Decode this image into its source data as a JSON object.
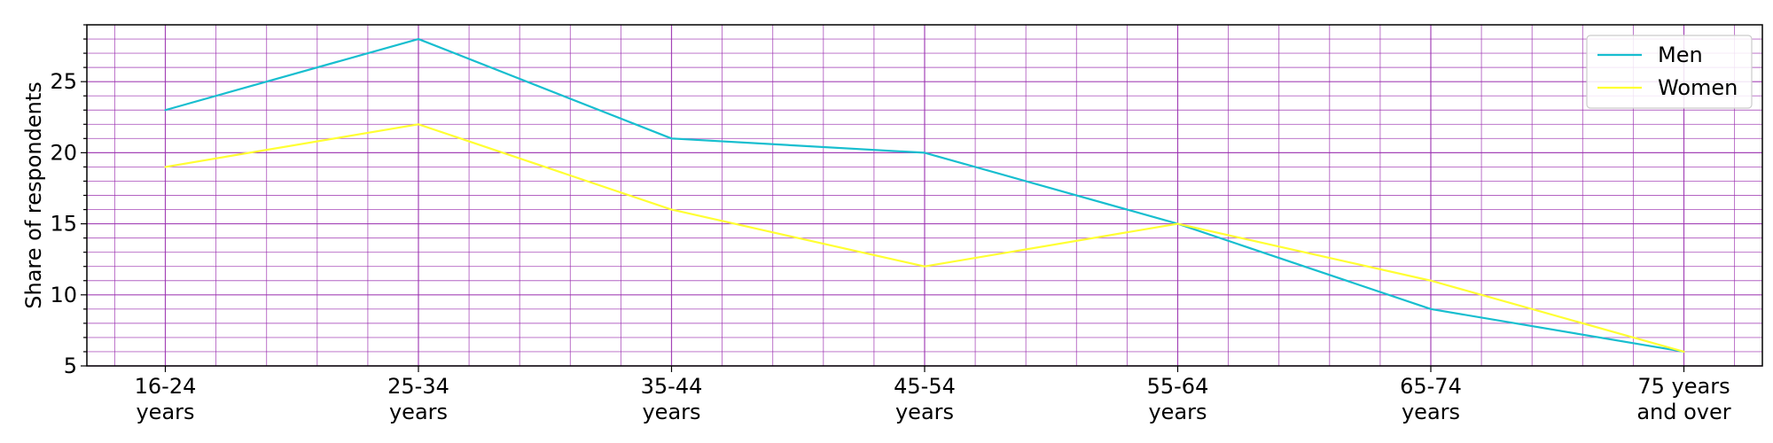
{
  "chart_data": {
    "type": "line",
    "title": "",
    "xlabel": "",
    "ylabel": "Share of respondents",
    "categories": [
      [
        "16-24",
        "years"
      ],
      [
        "25-34",
        "years"
      ],
      [
        "35-44",
        "years"
      ],
      [
        "45-54",
        "years"
      ],
      [
        "55-64",
        "years"
      ],
      [
        "65-74",
        "years"
      ],
      [
        "75 years",
        "and over"
      ]
    ],
    "series": [
      {
        "name": "Men",
        "color": "#17becf",
        "values": [
          23,
          28,
          21,
          20,
          15,
          9,
          6
        ]
      },
      {
        "name": "Women",
        "color": "#ffff33",
        "values": [
          19,
          22,
          16,
          12,
          15,
          11,
          6
        ]
      }
    ],
    "ylim": [
      5,
      29
    ],
    "yticks": [
      5,
      10,
      15,
      20,
      25
    ],
    "grid": true,
    "grid_color": "#9b30b0",
    "legend_position": "top-right"
  }
}
